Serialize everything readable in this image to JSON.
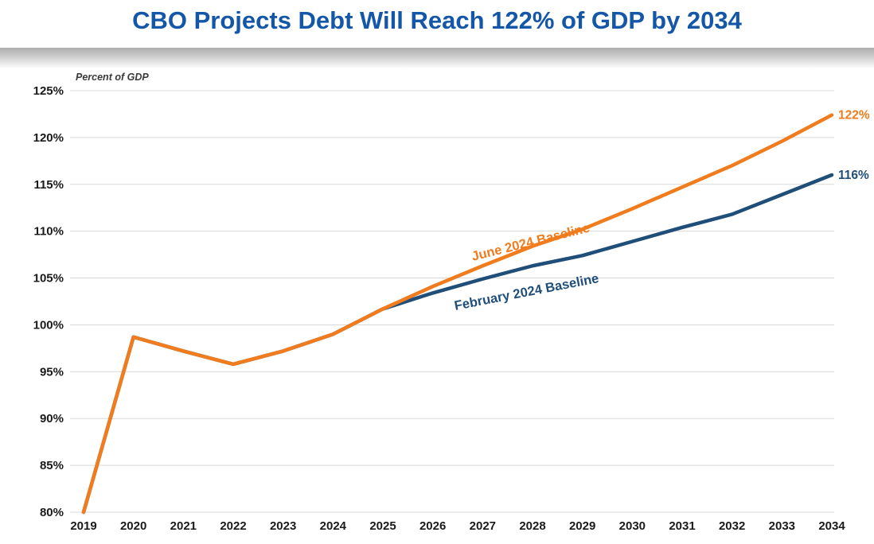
{
  "title": "CBO Projects Debt Will Reach 122% of GDP by 2034",
  "axis_note": "Percent of GDP",
  "colors": {
    "title": "#1457a8",
    "grid": "#d9d9d9",
    "tick_text": "#1a1a1a",
    "band": "#aeaeae"
  },
  "chart_data": {
    "type": "line",
    "title": "CBO Projects Debt Will Reach 122% of GDP by 2034",
    "xlabel": "",
    "ylabel": "Percent of GDP",
    "x": [
      2019,
      2020,
      2021,
      2022,
      2023,
      2024,
      2025,
      2026,
      2027,
      2028,
      2029,
      2030,
      2031,
      2032,
      2033,
      2034
    ],
    "ylim": [
      80,
      125
    ],
    "ytick_step": 5,
    "ytick_suffix": "%",
    "grid": "horizontal",
    "legend": "inline-rotated-labels",
    "series": [
      {
        "name": "February 2024 Baseline",
        "color": "#1f4e79",
        "end_label": "116%",
        "values": [
          80,
          98.7,
          97.2,
          95.8,
          97.2,
          99.0,
          101.7,
          103.4,
          104.9,
          106.3,
          107.4,
          108.9,
          110.4,
          111.8,
          113.9,
          116.0
        ]
      },
      {
        "name": "June 2024 Baseline",
        "color": "#f07c1e",
        "end_label": "122%",
        "values": [
          80,
          98.7,
          97.2,
          95.8,
          97.2,
          99.0,
          101.7,
          104.1,
          106.3,
          108.4,
          110.2,
          112.4,
          114.7,
          117.0,
          119.6,
          122.4
        ]
      }
    ]
  }
}
